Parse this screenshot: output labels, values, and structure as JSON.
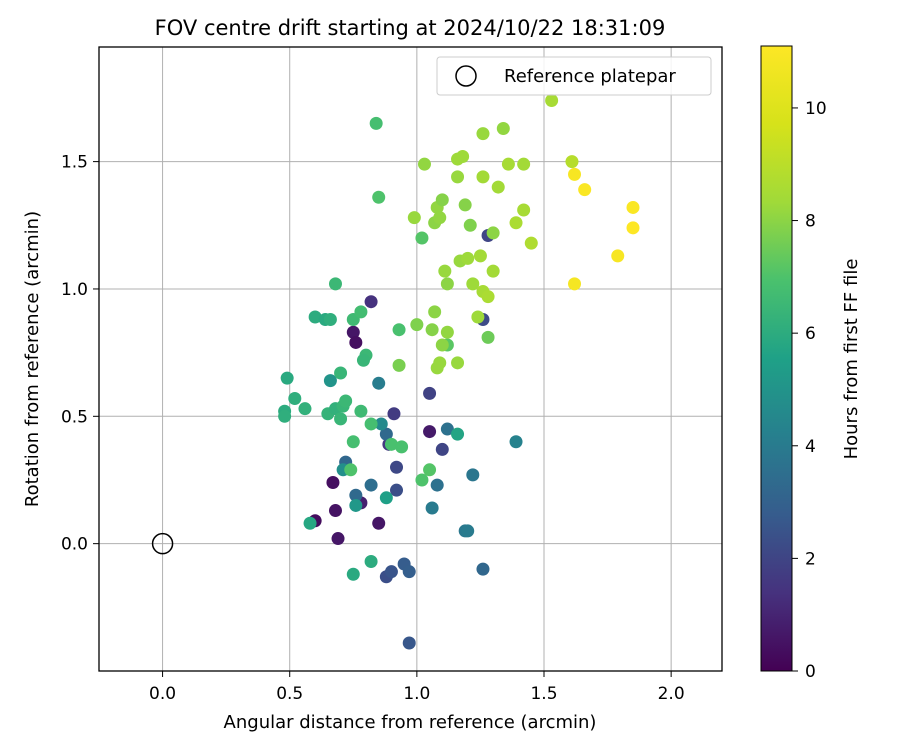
{
  "chart_data": {
    "type": "scatter",
    "title": "FOV centre drift starting at 2024/10/22 18:31:09",
    "xlabel": "Angular distance from reference (arcmin)",
    "ylabel": "Rotation from reference (arcmin)",
    "xlim": [
      -0.25,
      2.2
    ],
    "ylim": [
      -0.5,
      1.95
    ],
    "xticks": [
      0.0,
      0.5,
      1.0,
      1.5,
      2.0
    ],
    "xtick_labels": [
      "0.0",
      "0.5",
      "1.0",
      "1.5",
      "2.0"
    ],
    "yticks": [
      0.0,
      0.5,
      1.0,
      1.5
    ],
    "ytick_labels": [
      "0.0",
      "0.5",
      "1.0",
      "1.5"
    ],
    "grid": true,
    "legend": {
      "placement": "top-right",
      "entries": [
        "Reference platepar"
      ]
    },
    "reference_point": {
      "x": 0.0,
      "y": 0.0
    },
    "colorbar": {
      "label": "Hours from first FF file",
      "colormap": "viridis",
      "range": [
        0,
        11.1
      ],
      "ticks": [
        0,
        2,
        4,
        6,
        8,
        10
      ],
      "tick_labels": [
        "0",
        "2",
        "4",
        "6",
        "8",
        "10"
      ]
    },
    "points": [
      {
        "x": 0.6,
        "y": 0.09,
        "c": 0.3
      },
      {
        "x": 0.67,
        "y": 0.24,
        "c": 0.4
      },
      {
        "x": 0.68,
        "y": 0.13,
        "c": 0.5
      },
      {
        "x": 0.69,
        "y": 0.02,
        "c": 0.6
      },
      {
        "x": 0.75,
        "y": 0.83,
        "c": 0.6
      },
      {
        "x": 0.76,
        "y": 0.79,
        "c": 0.4
      },
      {
        "x": 0.85,
        "y": 0.08,
        "c": 0.6
      },
      {
        "x": 1.05,
        "y": 0.44,
        "c": 0.7
      },
      {
        "x": 0.78,
        "y": 0.16,
        "c": 0.9
      },
      {
        "x": 0.82,
        "y": 0.95,
        "c": 1.4
      },
      {
        "x": 0.91,
        "y": 0.51,
        "c": 1.7
      },
      {
        "x": 0.89,
        "y": 0.39,
        "c": 1.6
      },
      {
        "x": 1.05,
        "y": 0.59,
        "c": 1.9
      },
      {
        "x": 1.1,
        "y": 0.37,
        "c": 2.0
      },
      {
        "x": 1.26,
        "y": 0.88,
        "c": 2.2
      },
      {
        "x": 1.28,
        "y": 1.21,
        "c": 2.0
      },
      {
        "x": 0.92,
        "y": 0.3,
        "c": 2.1
      },
      {
        "x": 0.92,
        "y": 0.21,
        "c": 2.3
      },
      {
        "x": 0.88,
        "y": -0.13,
        "c": 2.3
      },
      {
        "x": 0.9,
        "y": -0.11,
        "c": 2.5
      },
      {
        "x": 0.95,
        "y": -0.08,
        "c": 2.8
      },
      {
        "x": 0.97,
        "y": -0.11,
        "c": 2.9
      },
      {
        "x": 0.97,
        "y": -0.39,
        "c": 2.6
      },
      {
        "x": 1.26,
        "y": -0.1,
        "c": 3.2
      },
      {
        "x": 0.72,
        "y": 0.32,
        "c": 3.2
      },
      {
        "x": 0.76,
        "y": 0.19,
        "c": 3.3
      },
      {
        "x": 0.82,
        "y": 0.23,
        "c": 3.5
      },
      {
        "x": 0.88,
        "y": 0.43,
        "c": 3.3
      },
      {
        "x": 1.08,
        "y": 0.23,
        "c": 3.6
      },
      {
        "x": 1.12,
        "y": 0.45,
        "c": 3.6
      },
      {
        "x": 1.22,
        "y": 0.27,
        "c": 3.8
      },
      {
        "x": 1.19,
        "y": 0.05,
        "c": 3.9
      },
      {
        "x": 1.2,
        "y": 0.05,
        "c": 4.0
      },
      {
        "x": 1.06,
        "y": 0.14,
        "c": 4.0
      },
      {
        "x": 1.39,
        "y": 0.4,
        "c": 4.3
      },
      {
        "x": 0.85,
        "y": 0.63,
        "c": 4.1
      },
      {
        "x": 0.86,
        "y": 0.47,
        "c": 4.6
      },
      {
        "x": 0.71,
        "y": 0.29,
        "c": 4.8
      },
      {
        "x": 0.66,
        "y": 0.64,
        "c": 5.0
      },
      {
        "x": 0.76,
        "y": 0.15,
        "c": 5.2
      },
      {
        "x": 0.88,
        "y": 0.18,
        "c": 5.5
      },
      {
        "x": 1.16,
        "y": 0.43,
        "c": 5.7
      },
      {
        "x": 0.58,
        "y": 0.08,
        "c": 5.8
      },
      {
        "x": 0.75,
        "y": -0.12,
        "c": 5.9
      },
      {
        "x": 0.82,
        "y": -0.07,
        "c": 6.0
      },
      {
        "x": 0.49,
        "y": 0.65,
        "c": 5.9
      },
      {
        "x": 0.48,
        "y": 0.52,
        "c": 6.0
      },
      {
        "x": 0.48,
        "y": 0.5,
        "c": 6.1
      },
      {
        "x": 0.52,
        "y": 0.57,
        "c": 6.1
      },
      {
        "x": 0.56,
        "y": 0.53,
        "c": 6.2
      },
      {
        "x": 0.6,
        "y": 0.89,
        "c": 6.0
      },
      {
        "x": 0.64,
        "y": 0.88,
        "c": 5.9
      },
      {
        "x": 0.66,
        "y": 0.88,
        "c": 6.1
      },
      {
        "x": 0.65,
        "y": 0.51,
        "c": 6.3
      },
      {
        "x": 0.68,
        "y": 0.53,
        "c": 6.2
      },
      {
        "x": 0.7,
        "y": 0.49,
        "c": 6.4
      },
      {
        "x": 0.71,
        "y": 0.54,
        "c": 6.4
      },
      {
        "x": 0.72,
        "y": 0.56,
        "c": 6.5
      },
      {
        "x": 0.7,
        "y": 0.67,
        "c": 6.4
      },
      {
        "x": 0.68,
        "y": 1.02,
        "c": 6.5
      },
      {
        "x": 0.75,
        "y": 0.88,
        "c": 6.6
      },
      {
        "x": 0.78,
        "y": 0.91,
        "c": 6.7
      },
      {
        "x": 0.78,
        "y": 0.52,
        "c": 6.6
      },
      {
        "x": 0.8,
        "y": 0.74,
        "c": 6.5
      },
      {
        "x": 0.79,
        "y": 0.72,
        "c": 6.4
      },
      {
        "x": 0.82,
        "y": 0.47,
        "c": 6.8
      },
      {
        "x": 0.75,
        "y": 0.4,
        "c": 6.8
      },
      {
        "x": 0.9,
        "y": 0.39,
        "c": 6.9
      },
      {
        "x": 0.94,
        "y": 0.38,
        "c": 6.9
      },
      {
        "x": 0.74,
        "y": 0.29,
        "c": 7.0
      },
      {
        "x": 0.93,
        "y": 0.84,
        "c": 6.9
      },
      {
        "x": 1.02,
        "y": 0.25,
        "c": 7.0
      },
      {
        "x": 1.05,
        "y": 0.29,
        "c": 7.1
      },
      {
        "x": 0.84,
        "y": 1.65,
        "c": 6.8
      },
      {
        "x": 0.85,
        "y": 1.36,
        "c": 7.0
      },
      {
        "x": 1.02,
        "y": 1.2,
        "c": 7.1
      },
      {
        "x": 1.12,
        "y": 0.78,
        "c": 7.2
      },
      {
        "x": 1.28,
        "y": 0.81,
        "c": 7.5
      },
      {
        "x": 0.93,
        "y": 0.7,
        "c": 7.7
      },
      {
        "x": 1.0,
        "y": 0.86,
        "c": 7.8
      },
      {
        "x": 1.06,
        "y": 0.84,
        "c": 7.9
      },
      {
        "x": 1.07,
        "y": 0.91,
        "c": 8.0
      },
      {
        "x": 1.1,
        "y": 0.78,
        "c": 8.0
      },
      {
        "x": 1.12,
        "y": 0.83,
        "c": 8.1
      },
      {
        "x": 1.08,
        "y": 0.69,
        "c": 8.2
      },
      {
        "x": 1.09,
        "y": 0.71,
        "c": 8.2
      },
      {
        "x": 1.16,
        "y": 0.71,
        "c": 8.2
      },
      {
        "x": 1.24,
        "y": 0.89,
        "c": 8.3
      },
      {
        "x": 1.11,
        "y": 1.07,
        "c": 8.2
      },
      {
        "x": 1.12,
        "y": 1.02,
        "c": 8.0
      },
      {
        "x": 1.17,
        "y": 1.11,
        "c": 8.2
      },
      {
        "x": 1.2,
        "y": 1.12,
        "c": 8.3
      },
      {
        "x": 1.22,
        "y": 1.02,
        "c": 8.3
      },
      {
        "x": 1.25,
        "y": 1.13,
        "c": 8.4
      },
      {
        "x": 1.26,
        "y": 0.99,
        "c": 8.5
      },
      {
        "x": 1.28,
        "y": 0.97,
        "c": 8.6
      },
      {
        "x": 1.3,
        "y": 1.07,
        "c": 8.4
      },
      {
        "x": 0.99,
        "y": 1.28,
        "c": 8.2
      },
      {
        "x": 1.07,
        "y": 1.26,
        "c": 8.0
      },
      {
        "x": 1.08,
        "y": 1.32,
        "c": 8.1
      },
      {
        "x": 1.09,
        "y": 1.28,
        "c": 8.1
      },
      {
        "x": 1.1,
        "y": 1.35,
        "c": 7.9
      },
      {
        "x": 1.19,
        "y": 1.33,
        "c": 7.9
      },
      {
        "x": 1.21,
        "y": 1.25,
        "c": 7.8
      },
      {
        "x": 1.3,
        "y": 1.22,
        "c": 8.0
      },
      {
        "x": 1.03,
        "y": 1.49,
        "c": 8.1
      },
      {
        "x": 1.16,
        "y": 1.44,
        "c": 8.2
      },
      {
        "x": 1.16,
        "y": 1.51,
        "c": 8.3
      },
      {
        "x": 1.18,
        "y": 1.52,
        "c": 8.3
      },
      {
        "x": 1.26,
        "y": 1.44,
        "c": 8.4
      },
      {
        "x": 1.32,
        "y": 1.4,
        "c": 8.4
      },
      {
        "x": 1.36,
        "y": 1.49,
        "c": 8.5
      },
      {
        "x": 1.42,
        "y": 1.49,
        "c": 8.4
      },
      {
        "x": 1.26,
        "y": 1.61,
        "c": 8.2
      },
      {
        "x": 1.34,
        "y": 1.63,
        "c": 8.1
      },
      {
        "x": 1.39,
        "y": 1.26,
        "c": 8.6
      },
      {
        "x": 1.42,
        "y": 1.31,
        "c": 8.5
      },
      {
        "x": 1.45,
        "y": 1.18,
        "c": 8.7
      },
      {
        "x": 1.53,
        "y": 1.74,
        "c": 8.5
      },
      {
        "x": 1.61,
        "y": 1.5,
        "c": 8.9
      },
      {
        "x": 1.62,
        "y": 1.45,
        "c": 10.9
      },
      {
        "x": 1.66,
        "y": 1.39,
        "c": 11.0
      },
      {
        "x": 1.62,
        "y": 1.02,
        "c": 10.8
      },
      {
        "x": 1.79,
        "y": 1.13,
        "c": 10.9
      },
      {
        "x": 1.85,
        "y": 1.32,
        "c": 11.0
      },
      {
        "x": 1.85,
        "y": 1.24,
        "c": 11.1
      }
    ]
  }
}
